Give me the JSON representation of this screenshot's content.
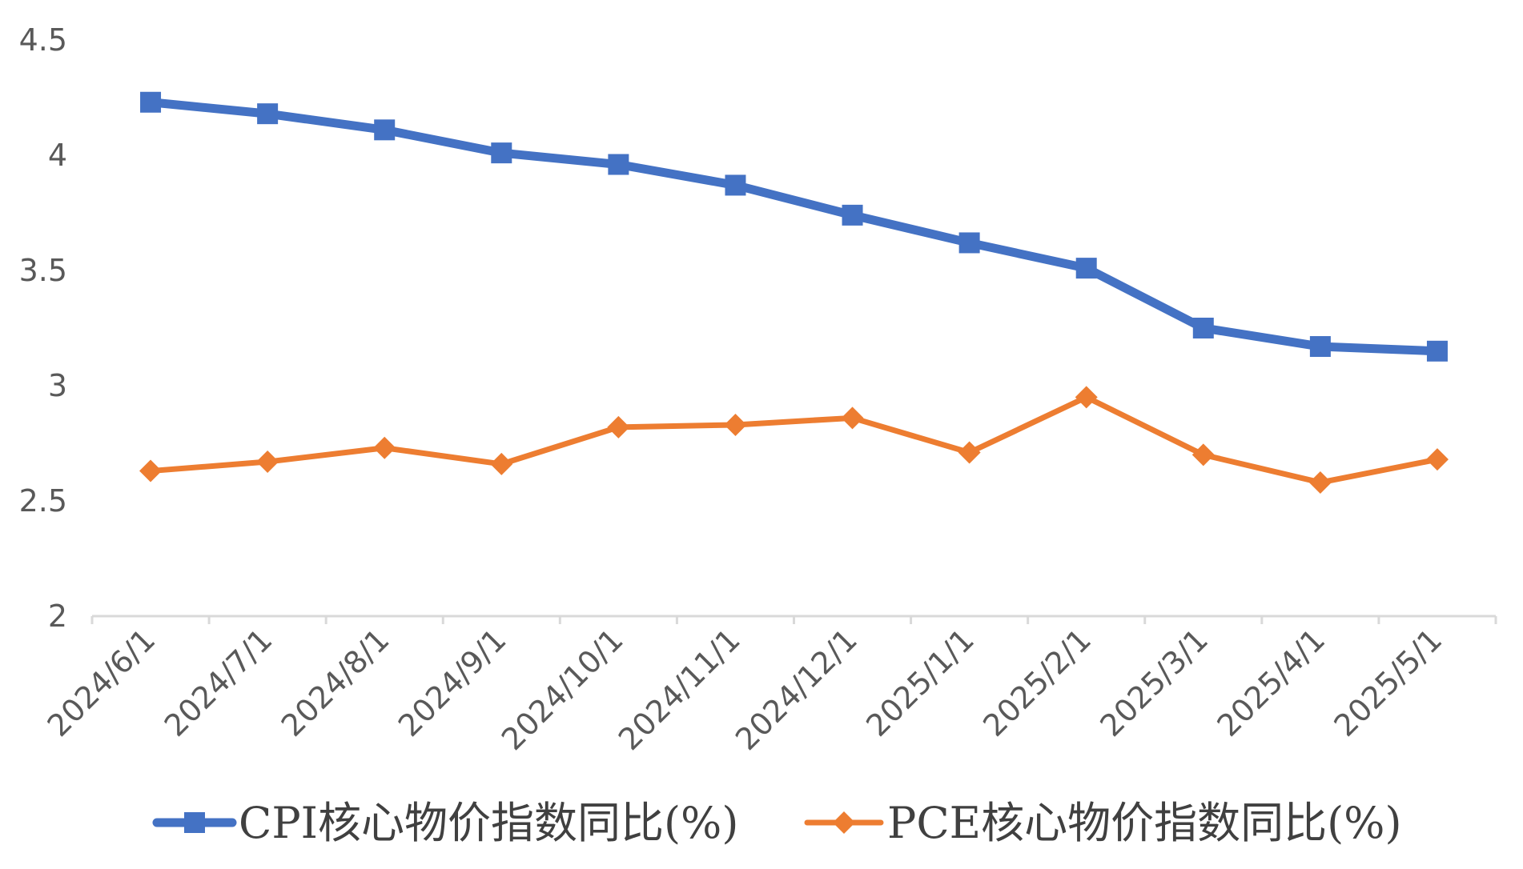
{
  "chart_data": {
    "type": "line",
    "title": "",
    "xlabel": "",
    "ylabel": "",
    "categories": [
      "2024/6/1",
      "2024/7/1",
      "2024/8/1",
      "2024/9/1",
      "2024/10/1",
      "2024/11/1",
      "2024/12/1",
      "2025/1/1",
      "2025/2/1",
      "2025/3/1",
      "2025/4/1",
      "2025/5/1"
    ],
    "y_ticks": [
      "2",
      "2.5",
      "3",
      "3.5",
      "4",
      "4.5"
    ],
    "ylim": [
      2,
      4.5
    ],
    "grid": false,
    "legend_position": "bottom",
    "series": [
      {
        "name": "CPI核心物价指数同比(%)",
        "color": "#4472C4",
        "marker": "square",
        "values": [
          4.23,
          4.18,
          4.11,
          4.01,
          3.96,
          3.87,
          3.74,
          3.62,
          3.51,
          3.25,
          3.17,
          3.15
        ]
      },
      {
        "name": "PCE核心物价指数同比(%)",
        "color": "#ED7D31",
        "marker": "diamond",
        "values": [
          2.63,
          2.67,
          2.73,
          2.66,
          2.82,
          2.83,
          2.86,
          2.71,
          2.95,
          2.7,
          2.58,
          2.68
        ]
      }
    ]
  }
}
